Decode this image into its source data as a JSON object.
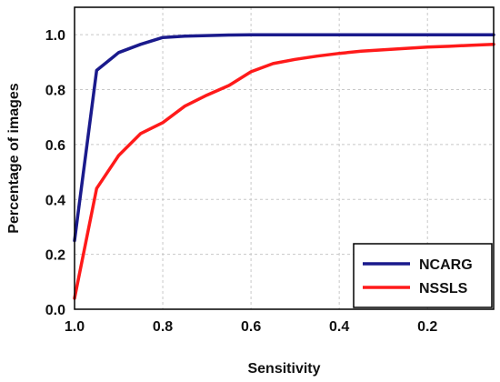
{
  "chart_data": {
    "type": "line",
    "xlabel": "Sensitivity",
    "ylabel": "Percentage of images",
    "xlim": [
      1.0,
      0.05
    ],
    "ylim": [
      0.0,
      1.1
    ],
    "x_reversed": true,
    "grid": true,
    "legend_position": "bottom-right",
    "xticks": [
      1.0,
      0.8,
      0.6,
      0.4,
      0.2
    ],
    "xtick_labels": [
      "1.0",
      "0.8",
      "0.6",
      "0.4",
      "0.2"
    ],
    "yticks": [
      0.0,
      0.2,
      0.4,
      0.6,
      0.8,
      1.0
    ],
    "ytick_labels": [
      "0.0",
      "0.2",
      "0.4",
      "0.6",
      "0.8",
      "1.0"
    ],
    "series": [
      {
        "name": "NCARG",
        "color": "#1a1a8c",
        "x": [
          1.0,
          0.95,
          0.9,
          0.85,
          0.8,
          0.75,
          0.7,
          0.65,
          0.6,
          0.55,
          0.5,
          0.45,
          0.4,
          0.35,
          0.3,
          0.25,
          0.2,
          0.15,
          0.1,
          0.05
        ],
        "y": [
          0.25,
          0.87,
          0.935,
          0.965,
          0.99,
          0.995,
          0.997,
          0.999,
          1.0,
          1.0,
          1.0,
          1.0,
          1.0,
          1.0,
          1.0,
          1.0,
          1.0,
          1.0,
          1.0,
          1.0
        ]
      },
      {
        "name": "NSSLS",
        "color": "#ff1a1a",
        "x": [
          1.0,
          0.95,
          0.9,
          0.85,
          0.8,
          0.75,
          0.7,
          0.65,
          0.6,
          0.55,
          0.5,
          0.45,
          0.4,
          0.35,
          0.3,
          0.25,
          0.2,
          0.15,
          0.1,
          0.05
        ],
        "y": [
          0.04,
          0.44,
          0.56,
          0.64,
          0.68,
          0.74,
          0.78,
          0.815,
          0.865,
          0.895,
          0.91,
          0.922,
          0.932,
          0.94,
          0.945,
          0.95,
          0.955,
          0.958,
          0.962,
          0.965
        ]
      }
    ]
  }
}
